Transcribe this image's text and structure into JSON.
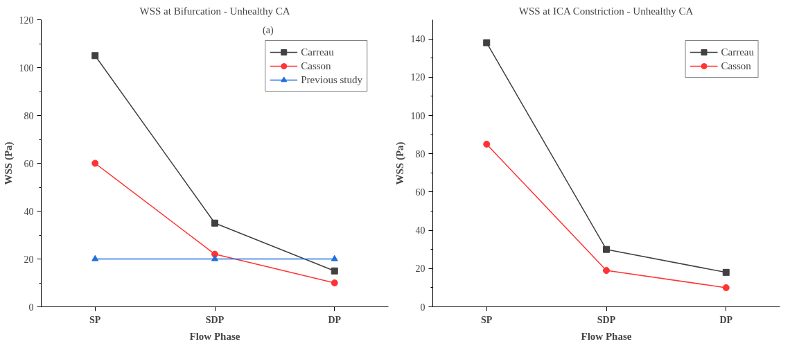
{
  "chart_data": [
    {
      "type": "line",
      "title": "WSS at Bifurcation - Unhealthy CA",
      "xlabel": "Flow Phase",
      "ylabel": "WSS (Pa)",
      "categories": [
        "SP",
        "SDP",
        "DP"
      ],
      "ylim": [
        0,
        120
      ],
      "yticks": [
        0,
        20,
        40,
        60,
        80,
        100,
        120
      ],
      "legend": "top right",
      "grid": false,
      "annotations": [
        "(a)"
      ],
      "series": [
        {
          "name": "Carreau",
          "color": "#404040",
          "marker": "square",
          "values": [
            105,
            35,
            15
          ]
        },
        {
          "name": "Casson",
          "color": "#ff3333",
          "marker": "circle",
          "values": [
            60,
            22,
            10
          ]
        },
        {
          "name": "Previous study",
          "color": "#1f6fe0",
          "marker": "triangle",
          "values": [
            20,
            20,
            20
          ]
        }
      ]
    },
    {
      "type": "line",
      "title": "WSS at ICA Constriction - Unhealthy CA",
      "xlabel": "Flow Phase",
      "ylabel": "WSS (Pa)",
      "categories": [
        "SP",
        "SDP",
        "DP"
      ],
      "ylim": [
        0,
        150
      ],
      "yticks": [
        0,
        20,
        40,
        60,
        80,
        100,
        120,
        140
      ],
      "legend": "top right",
      "grid": false,
      "series": [
        {
          "name": "Carreau",
          "color": "#404040",
          "marker": "square",
          "values": [
            138,
            30,
            18
          ]
        },
        {
          "name": "Casson",
          "color": "#ff3333",
          "marker": "circle",
          "values": [
            85,
            19,
            10
          ]
        }
      ]
    }
  ]
}
